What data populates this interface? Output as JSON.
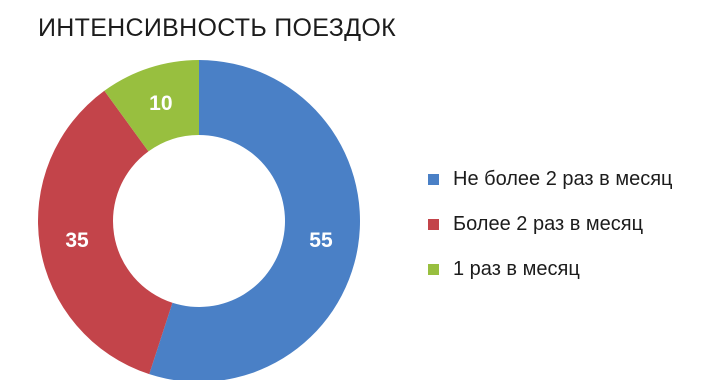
{
  "chart_data": {
    "type": "pie",
    "title": "ИНТЕНСИВНОСТЬ ПОЕЗДОК",
    "donut": true,
    "categories": [
      "Не более 2 раз в месяц",
      "Более 2 раз в месяц",
      "1 раз в месяц"
    ],
    "values": [
      55,
      35,
      10
    ],
    "colors": [
      "#4a80c6",
      "#c3444a",
      "#98bf3f"
    ],
    "data_labels": [
      "55",
      "35",
      "10"
    ],
    "legend": "right"
  }
}
